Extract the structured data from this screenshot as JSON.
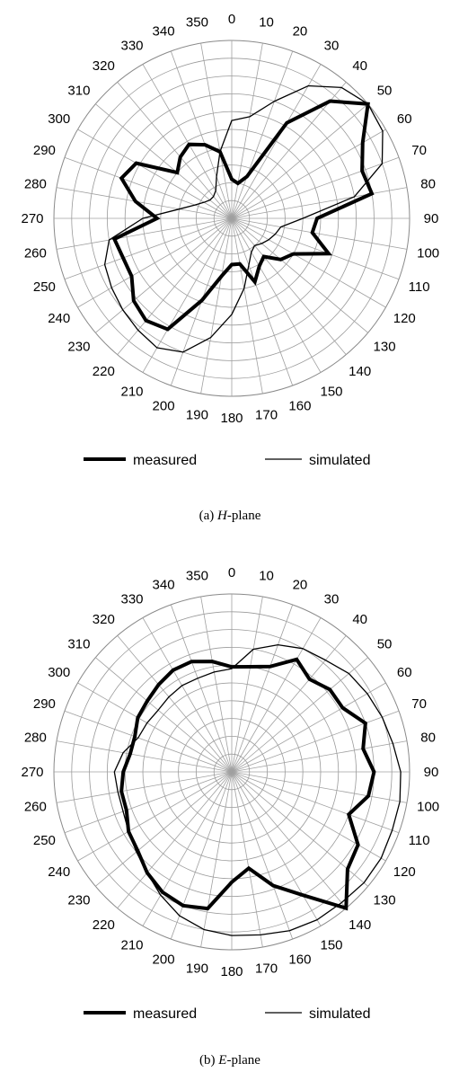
{
  "chart_data": [
    {
      "type": "polar-line",
      "theta_ticks": [
        "0",
        "10",
        "20",
        "30",
        "40",
        "50",
        "60",
        "70",
        "80",
        "90",
        "100",
        "110",
        "120",
        "130",
        "140",
        "150",
        "160",
        "170",
        "180",
        "190",
        "200",
        "210",
        "220",
        "230",
        "240",
        "250",
        "260",
        "270",
        "280",
        "290",
        "300",
        "310",
        "320",
        "330",
        "340",
        "350"
      ],
      "radial_range": [
        0,
        1
      ],
      "grid": true,
      "legend": {
        "position": "bottom",
        "measured_label": "measured",
        "simulated_label": "simulated"
      },
      "caption": {
        "prefix": "(a) ",
        "italic": "H",
        "suffix": "-plane"
      },
      "series": [
        {
          "name": "measured",
          "style": "thick",
          "theta": [
            0,
            10,
            20,
            30,
            40,
            50,
            60,
            70,
            80,
            90,
            100,
            110,
            120,
            130,
            140,
            150,
            160,
            170,
            180,
            190,
            200,
            210,
            220,
            230,
            240,
            250,
            260,
            270,
            280,
            290,
            300,
            310,
            320,
            330,
            340,
            350
          ],
          "r": [
            0.22,
            0.2,
            0.25,
            0.62,
            0.86,
            1.0,
            0.85,
            0.78,
            0.8,
            0.48,
            0.46,
            0.58,
            0.4,
            0.36,
            0.28,
            0.31,
            0.38,
            0.26,
            0.26,
            0.33,
            0.49,
            0.72,
            0.75,
            0.72,
            0.65,
            0.65,
            0.67,
            0.42,
            0.55,
            0.66,
            0.62,
            0.4,
            0.45,
            0.48,
            0.44,
            0.38
          ]
        },
        {
          "name": "simulated",
          "style": "thin",
          "theta": [
            0,
            10,
            20,
            30,
            40,
            50,
            60,
            70,
            80,
            90,
            100,
            110,
            120,
            130,
            140,
            150,
            160,
            170,
            180,
            190,
            200,
            210,
            220,
            230,
            240,
            250,
            260,
            270,
            280,
            290,
            300,
            310,
            320,
            330,
            340,
            350
          ],
          "r": [
            0.55,
            0.58,
            0.7,
            0.86,
            0.96,
            1.0,
            0.98,
            0.9,
            0.7,
            0.4,
            0.28,
            0.26,
            0.24,
            0.22,
            0.2,
            0.22,
            0.28,
            0.4,
            0.54,
            0.68,
            0.8,
            0.84,
            0.82,
            0.8,
            0.78,
            0.76,
            0.7,
            0.5,
            0.3,
            0.22,
            0.18,
            0.16,
            0.16,
            0.18,
            0.25,
            0.38
          ]
        }
      ]
    },
    {
      "type": "polar-line",
      "theta_ticks": [
        "0",
        "10",
        "20",
        "30",
        "40",
        "50",
        "60",
        "70",
        "80",
        "90",
        "100",
        "110",
        "120",
        "130",
        "140",
        "150",
        "160",
        "170",
        "180",
        "190",
        "200",
        "210",
        "220",
        "230",
        "240",
        "250",
        "260",
        "270",
        "280",
        "290",
        "300",
        "310",
        "320",
        "330",
        "340",
        "350"
      ],
      "radial_range": [
        0,
        1
      ],
      "grid": true,
      "legend": {
        "position": "bottom",
        "measured_label": "measured",
        "simulated_label": "simulated"
      },
      "caption": {
        "prefix": "(b) ",
        "italic": "E",
        "suffix": "-plane"
      },
      "series": [
        {
          "name": "measured",
          "style": "thick",
          "theta": [
            0,
            10,
            20,
            30,
            40,
            50,
            60,
            70,
            80,
            90,
            100,
            110,
            120,
            130,
            140,
            150,
            160,
            170,
            180,
            190,
            200,
            210,
            220,
            230,
            240,
            250,
            260,
            270,
            280,
            290,
            300,
            310,
            320,
            330,
            340,
            350
          ],
          "r": [
            0.59,
            0.6,
            0.63,
            0.73,
            0.68,
            0.72,
            0.72,
            0.8,
            0.75,
            0.8,
            0.78,
            0.7,
            0.82,
            0.85,
            1.0,
            0.8,
            0.68,
            0.55,
            0.62,
            0.78,
            0.8,
            0.78,
            0.74,
            0.69,
            0.67,
            0.63,
            0.63,
            0.61,
            0.58,
            0.58,
            0.61,
            0.62,
            0.64,
            0.66,
            0.66,
            0.63
          ]
        },
        {
          "name": "simulated",
          "style": "thin",
          "theta": [
            0,
            10,
            20,
            30,
            40,
            50,
            60,
            70,
            80,
            90,
            100,
            110,
            120,
            130,
            140,
            150,
            160,
            170,
            180,
            190,
            200,
            210,
            220,
            230,
            240,
            250,
            260,
            270,
            280,
            290,
            300,
            310,
            320,
            330,
            340,
            350
          ],
          "r": [
            0.58,
            0.7,
            0.76,
            0.8,
            0.82,
            0.86,
            0.88,
            0.9,
            0.92,
            0.95,
            0.96,
            0.96,
            0.97,
            0.97,
            0.96,
            0.96,
            0.95,
            0.93,
            0.92,
            0.9,
            0.86,
            0.8,
            0.74,
            0.7,
            0.67,
            0.65,
            0.65,
            0.66,
            0.62,
            0.56,
            0.55,
            0.54,
            0.55,
            0.56,
            0.56,
            0.57
          ]
        }
      ]
    }
  ]
}
